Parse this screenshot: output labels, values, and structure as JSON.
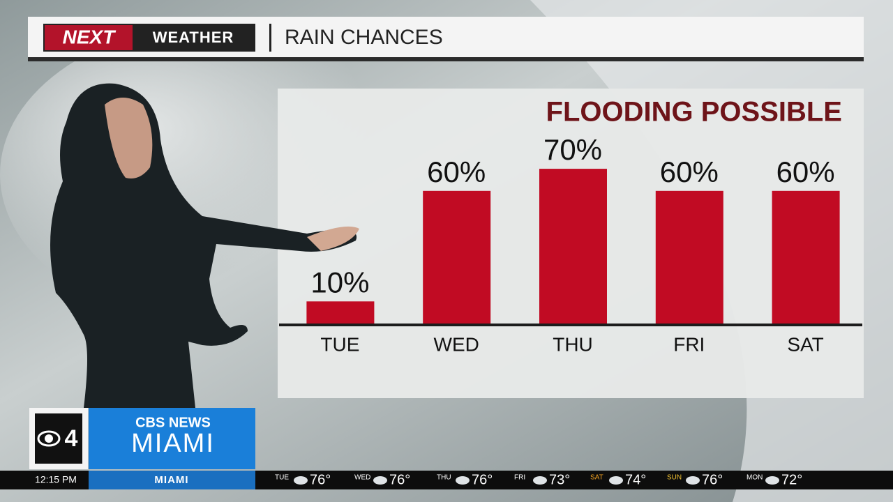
{
  "header": {
    "brand_left": "NEXT",
    "brand_right": "WEATHER",
    "title": "RAIN CHANCES"
  },
  "chart_data": {
    "type": "bar",
    "annotation": "FLOODING POSSIBLE",
    "categories": [
      "TUE",
      "WED",
      "THU",
      "FRI",
      "SAT"
    ],
    "values": [
      10,
      60,
      70,
      60,
      60
    ],
    "value_labels": [
      "10%",
      "60%",
      "70%",
      "60%",
      "60%"
    ],
    "color": "#c10b23"
  },
  "station": {
    "channel": "4",
    "network": "CBS NEWS",
    "city": "MIAMI"
  },
  "ticker": {
    "time": "12:15 PM",
    "location": "MIAMI",
    "days": [
      {
        "day": "TUE",
        "temp": "76°"
      },
      {
        "day": "WED",
        "temp": "76°"
      },
      {
        "day": "THU",
        "temp": "76°"
      },
      {
        "day": "FRI",
        "temp": "73°"
      },
      {
        "day": "SAT",
        "temp": "74°"
      },
      {
        "day": "SUN",
        "temp": "76°"
      },
      {
        "day": "MON",
        "temp": "72°"
      }
    ]
  }
}
